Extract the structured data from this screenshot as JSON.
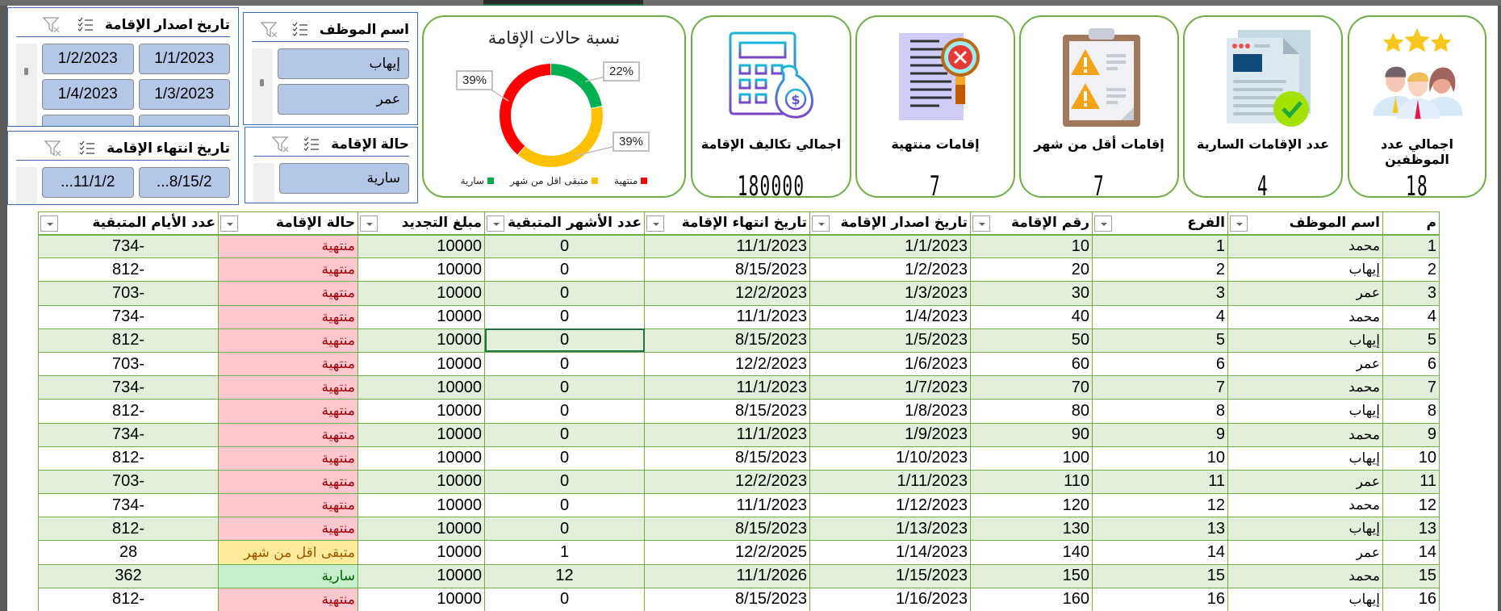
{
  "slicers": {
    "issue_date": {
      "title": "تاريخ اصدار الإقامة",
      "items": [
        "1/1/2023",
        "1/2/2023",
        "1/3/2023",
        "1/4/2023"
      ]
    },
    "end_date": {
      "title": "تاريخ انتهاء الإقامة",
      "items": [
        "8/15/2...",
        "11/1/2..."
      ]
    },
    "employee": {
      "title": "اسم الموظف",
      "items": [
        "إيهاب",
        "عمر"
      ]
    },
    "status": {
      "title": "حالة الإقامة",
      "items": [
        "سارية"
      ]
    }
  },
  "chart_data": {
    "type": "pie",
    "title": "نسبة حالات الإقامة",
    "categories": [
      "سارية",
      "متبقى اقل من شهر",
      "منتهية"
    ],
    "values": [
      22,
      39,
      39
    ],
    "labels": [
      "22%",
      "39%",
      "39%"
    ],
    "colors": [
      "#00b050",
      "#ffc000",
      "#ff0000"
    ],
    "legend_position": "bottom",
    "donut": true
  },
  "cards": [
    {
      "label": "اجمالي عدد الموظفين",
      "value": "18",
      "icon": "employees-stars-icon"
    },
    {
      "label": "عدد الإقامات السارية",
      "value": "4",
      "icon": "document-check-icon"
    },
    {
      "label": "إقامات أقل من شهر",
      "value": "7",
      "icon": "clipboard-warning-icon"
    },
    {
      "label": "إقامات منتهية",
      "value": "7",
      "icon": "document-magnifier-x-icon"
    },
    {
      "label": "اجمالي تكاليف الإقامة",
      "value": "180000",
      "icon": "calculator-money-bag-icon"
    }
  ],
  "table": {
    "headers": [
      "م",
      "اسم الموظف",
      "الفرع",
      "رقم الإقامة",
      "تاريخ اصدار الإقامة",
      "تاريخ انتهاء الإقامة",
      "عدد الأشهر المتبقية",
      "مبلغ التجديد",
      "حالة الإقامة",
      "عدد الأيام المتبقية"
    ],
    "rows": [
      [
        "1",
        "محمد",
        "1",
        "10",
        "1/1/2023",
        "11/1/2023",
        "0",
        "10000",
        "منتهية",
        "-734"
      ],
      [
        "2",
        "إيهاب",
        "2",
        "20",
        "1/2/2023",
        "8/15/2023",
        "0",
        "10000",
        "منتهية",
        "-812"
      ],
      [
        "3",
        "عمر",
        "3",
        "30",
        "1/3/2023",
        "12/2/2023",
        "0",
        "10000",
        "منتهية",
        "-703"
      ],
      [
        "4",
        "محمد",
        "4",
        "40",
        "1/4/2023",
        "11/1/2023",
        "0",
        "10000",
        "منتهية",
        "-734"
      ],
      [
        "5",
        "إيهاب",
        "5",
        "50",
        "1/5/2023",
        "8/15/2023",
        "0",
        "10000",
        "منتهية",
        "-812"
      ],
      [
        "6",
        "عمر",
        "6",
        "60",
        "1/6/2023",
        "12/2/2023",
        "0",
        "10000",
        "منتهية",
        "-703"
      ],
      [
        "7",
        "محمد",
        "7",
        "70",
        "1/7/2023",
        "11/1/2023",
        "0",
        "10000",
        "منتهية",
        "-734"
      ],
      [
        "8",
        "إيهاب",
        "8",
        "80",
        "1/8/2023",
        "8/15/2023",
        "0",
        "10000",
        "منتهية",
        "-812"
      ],
      [
        "9",
        "محمد",
        "9",
        "90",
        "1/9/2023",
        "11/1/2023",
        "0",
        "10000",
        "منتهية",
        "-734"
      ],
      [
        "10",
        "إيهاب",
        "10",
        "100",
        "1/10/2023",
        "8/15/2023",
        "0",
        "10000",
        "منتهية",
        "-812"
      ],
      [
        "11",
        "عمر",
        "11",
        "110",
        "1/11/2023",
        "12/2/2023",
        "0",
        "10000",
        "منتهية",
        "-703"
      ],
      [
        "12",
        "محمد",
        "12",
        "120",
        "1/12/2023",
        "11/1/2023",
        "0",
        "10000",
        "منتهية",
        "-734"
      ],
      [
        "13",
        "إيهاب",
        "13",
        "130",
        "1/13/2023",
        "8/15/2023",
        "0",
        "10000",
        "منتهية",
        "-812"
      ],
      [
        "14",
        "عمر",
        "14",
        "140",
        "1/14/2023",
        "12/2/2025",
        "1",
        "10000",
        "متبقى اقل من شهر",
        "28"
      ],
      [
        "15",
        "محمد",
        "15",
        "150",
        "1/15/2023",
        "11/1/2026",
        "12",
        "10000",
        "سارية",
        "362"
      ],
      [
        "16",
        "إيهاب",
        "16",
        "160",
        "1/16/2023",
        "8/15/2023",
        "0",
        "10000",
        "منتهية",
        "-812"
      ]
    ],
    "selected_cell": {
      "row": 5,
      "col": 6
    }
  },
  "colors": {
    "card_border": "#70ad47",
    "slicer_border": "#3b6db5",
    "slicer_button": "#b4c7e7",
    "band_row": "#e2efda",
    "expired_bg": "#ffc7ce",
    "soon_bg": "#ffeb9c",
    "active_bg": "#c6efce"
  }
}
